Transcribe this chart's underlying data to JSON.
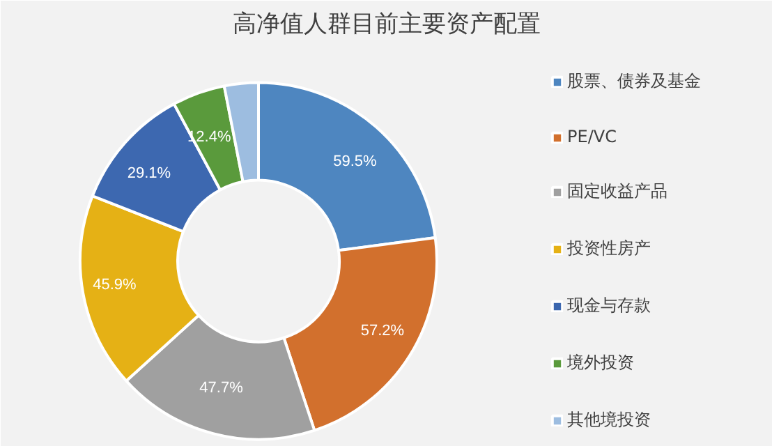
{
  "chart_data": {
    "type": "donut",
    "title": "高净值人群目前主要资产配置",
    "categories": [
      "股票、债券及基金",
      "PE/VC",
      "固定收益产品",
      "投资性房产",
      "现金与存款",
      "境外投资",
      "其他境投资"
    ],
    "values": [
      59.5,
      57.2,
      47.7,
      45.9,
      29.1,
      12.4,
      8
    ],
    "value_labels": [
      "59.5%",
      "57.2%",
      "47.7%",
      "45.9%",
      "29.1%",
      "12.4%",
      null
    ],
    "colors": [
      "#4e86c0",
      "#d2702d",
      "#a0a0a0",
      "#e5b115",
      "#3d68b0",
      "#5a9a3c",
      "#9dbde0"
    ],
    "legend": "right"
  }
}
